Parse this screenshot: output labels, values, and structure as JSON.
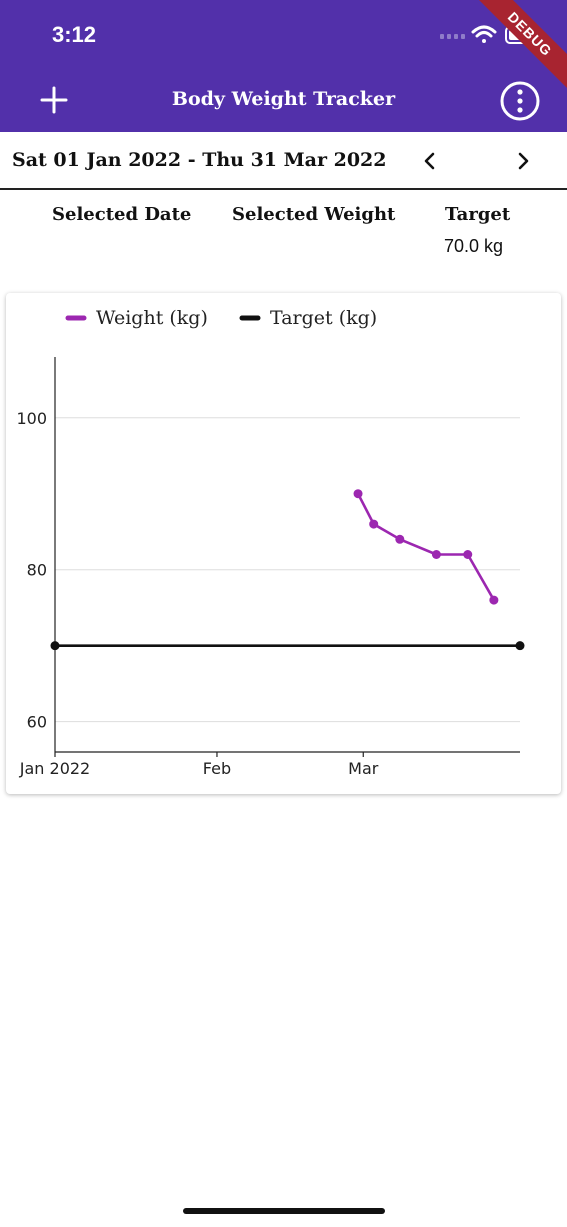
{
  "status_bar": {
    "time": "3:12"
  },
  "debug_banner": "DEBUG",
  "app_bar": {
    "title": "Body Weight Tracker",
    "add_icon": "plus-icon",
    "menu_icon": "more-vert-icon"
  },
  "colors": {
    "primary": "#5230AA",
    "weight": "#9C27B0",
    "target": "#111111",
    "grid": "#DDDDDD"
  },
  "date_range": {
    "label": "Sat 01 Jan 2022 - Thu 31 Mar 2022",
    "prev_icon": "chevron-left-icon",
    "next_icon": "chevron-right-icon"
  },
  "summary": {
    "selected_date_label": "Selected Date",
    "selected_weight_label": "Selected Weight",
    "target_label": "Target",
    "target_value": "70.0 kg"
  },
  "chart_data": {
    "type": "line",
    "legend_placement": "top-left",
    "grid": true,
    "x_range": [
      "2022-01-01",
      "2022-03-31"
    ],
    "x_ticks": [
      {
        "date": "2022-01-01",
        "label": "Jan 2022"
      },
      {
        "date": "2022-02-01",
        "label": "Feb"
      },
      {
        "date": "2022-03-01",
        "label": "Mar"
      }
    ],
    "ylim": [
      56,
      108
    ],
    "y_ticks": [
      60,
      80,
      100
    ],
    "series": [
      {
        "name": "Weight (kg)",
        "color": "#9C27B0",
        "points": [
          {
            "x": "2022-02-28",
            "y": 90
          },
          {
            "x": "2022-03-03",
            "y": 86
          },
          {
            "x": "2022-03-08",
            "y": 84
          },
          {
            "x": "2022-03-15",
            "y": 82
          },
          {
            "x": "2022-03-21",
            "y": 82
          },
          {
            "x": "2022-03-26",
            "y": 76
          }
        ]
      },
      {
        "name": "Target (kg)",
        "color": "#111111",
        "points": [
          {
            "x": "2022-01-01",
            "y": 70
          },
          {
            "x": "2022-03-31",
            "y": 70
          }
        ]
      }
    ]
  }
}
